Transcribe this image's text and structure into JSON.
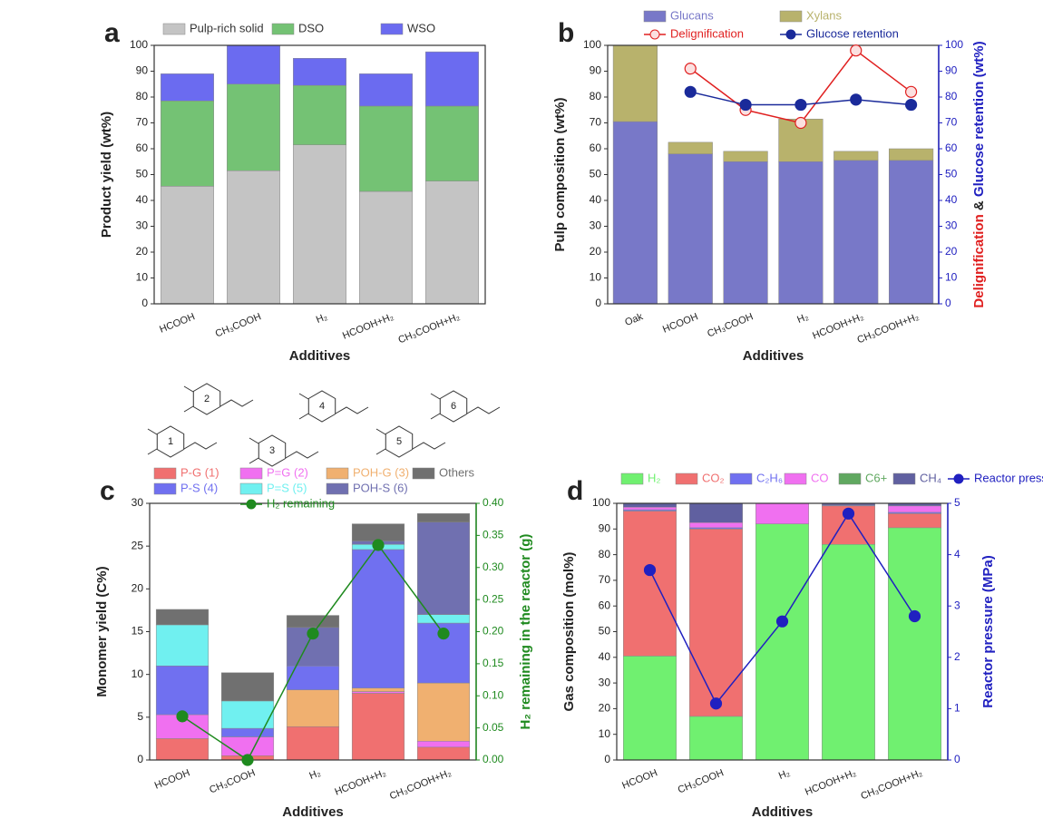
{
  "chart_data": [
    {
      "type": "bar",
      "stacked": true,
      "panel": "a",
      "categories": [
        "HCOOH",
        "CH₃COOH",
        "H₂",
        "HCOOH+H₂",
        "CH₃COOH+H₂"
      ],
      "xlabel": "Additives",
      "ylabel": "Product yield (wt%)",
      "ylim": [
        0,
        100
      ],
      "yticks": [
        0,
        10,
        20,
        30,
        40,
        50,
        60,
        70,
        80,
        90,
        100
      ],
      "series": [
        {
          "name": "Pulp-rich solid",
          "color": "#c4c4c4",
          "values": [
            45.5,
            51.5,
            61.5,
            43.5,
            47.5
          ]
        },
        {
          "name": "DSO",
          "color": "#74c274",
          "values": [
            33,
            33.5,
            23,
            33,
            29
          ]
        },
        {
          "name": "WSO",
          "color": "#6b6bf0",
          "values": [
            10.5,
            15,
            10.5,
            12.5,
            21
          ]
        }
      ]
    },
    {
      "type": "bar",
      "stacked": true,
      "panel": "b",
      "categories": [
        "Oak",
        "HCOOH",
        "CH₃COOH",
        "H₂",
        "HCOOH+H₂",
        "CH₃COOH+H₂"
      ],
      "xlabel": "Additives",
      "ylabel": "Pulp composition (wt%)",
      "y2label": [
        "Delignification",
        " & ",
        "Glucose retention (wt%)"
      ],
      "y2label_colors": [
        "#e02020",
        "#222222",
        "#2020c0"
      ],
      "ylim": [
        0,
        100
      ],
      "yticks": [
        0,
        10,
        20,
        30,
        40,
        50,
        60,
        70,
        80,
        90,
        100
      ],
      "y2lim": [
        0,
        100
      ],
      "y2ticks": [
        0,
        10,
        20,
        30,
        40,
        50,
        60,
        70,
        80,
        90,
        100
      ],
      "y2_color": "#2020c0",
      "series": [
        {
          "name": "Glucans",
          "color": "#7878c8",
          "values": [
            70.5,
            58,
            55,
            55,
            55.5,
            55.5
          ]
        },
        {
          "name": "Xylans",
          "color": "#b8b26c",
          "values": [
            29.5,
            4.5,
            4,
            16.5,
            3.5,
            4.5
          ]
        },
        {
          "name": "Delignification",
          "color": "#e02020",
          "axis": "y2",
          "values": [
            null,
            91,
            75,
            70,
            98,
            82
          ]
        },
        {
          "name": "Glucose retention",
          "color": "#1a2a9a",
          "axis": "y2",
          "values": [
            null,
            82,
            77,
            77,
            79,
            77
          ]
        }
      ]
    },
    {
      "type": "bar",
      "stacked": true,
      "panel": "c",
      "categories": [
        "HCOOH",
        "CH₃COOH",
        "H₂",
        "HCOOH+H₂",
        "CH₃COOH+H₂"
      ],
      "xlabel": "Additives",
      "ylabel": "Monomer yield (C%)",
      "y2label": "H₂ remaining in the reactor (g)",
      "ylim": [
        0,
        30
      ],
      "yticks": [
        0,
        5,
        10,
        15,
        20,
        25,
        30
      ],
      "y2lim": [
        0,
        0.4
      ],
      "y2ticks": [
        {
          "value": 0,
          "label": "0.00"
        },
        0.05,
        {
          "value": 0.1,
          "label": "0.10"
        },
        0.15,
        {
          "value": 0.2,
          "label": "0.20"
        },
        0.25,
        {
          "value": 0.3,
          "label": "0.30"
        },
        0.35,
        {
          "value": 0.4,
          "label": "0.40"
        }
      ],
      "y2_color": "#1f8a1f",
      "series": [
        {
          "name": "P-G (1)",
          "color": "#f07070",
          "values": [
            2.5,
            0.5,
            3.9,
            7.8,
            1.5
          ]
        },
        {
          "name": "P=G (2)",
          "color": "#f070f0",
          "values": [
            2.8,
            2.2,
            0,
            0.2,
            0.7
          ]
        },
        {
          "name": "POH-G (3)",
          "color": "#f0b070",
          "values": [
            0,
            0,
            4.3,
            0.4,
            6.8
          ]
        },
        {
          "name": "P-S (4)",
          "color": "#7070f0",
          "values": [
            5.7,
            1,
            2.8,
            16.2,
            7
          ]
        },
        {
          "name": "P=S (5)",
          "color": "#70f0f0",
          "values": [
            4.8,
            3.2,
            0,
            0.6,
            1
          ]
        },
        {
          "name": "POH-S (6)",
          "color": "#7070b0",
          "values": [
            0,
            0,
            4.5,
            0.4,
            10.8
          ]
        },
        {
          "name": "Others",
          "color": "#707070",
          "values": [
            1.8,
            3.3,
            1.4,
            2,
            1
          ]
        },
        {
          "name": "H₂ remaining",
          "color": "#1f8a1f",
          "axis": "y2",
          "values": [
            0.068,
            0.0,
            0.197,
            0.335,
            0.197
          ]
        }
      ]
    },
    {
      "type": "bar",
      "stacked": true,
      "panel": "d",
      "categories": [
        "HCOOH",
        "CH₃COOH",
        "H₂",
        "HCOOH+H₂",
        "CH₃COOH+H₂"
      ],
      "xlabel": "Additives",
      "ylabel": "Gas composition (mol%)",
      "y2label": "Reactor pressure (MPa)",
      "ylim": [
        0,
        100
      ],
      "yticks": [
        0,
        10,
        20,
        30,
        40,
        50,
        60,
        70,
        80,
        90,
        100
      ],
      "y2lim": [
        0,
        5
      ],
      "y2ticks": [
        0,
        1,
        2,
        3,
        4,
        5
      ],
      "y2_color": "#2020c0",
      "series": [
        {
          "name": "H₂",
          "color": "#70f070",
          "values": [
            40.5,
            17,
            92,
            84,
            90.5
          ]
        },
        {
          "name": "CO₂",
          "color": "#f07070",
          "values": [
            56.5,
            73,
            0,
            15,
            5.5
          ]
        },
        {
          "name": "C₂H₆",
          "color": "#7070f0",
          "values": [
            0.5,
            0.5,
            0,
            0.3,
            0.5
          ]
        },
        {
          "name": "CO",
          "color": "#f070f0",
          "values": [
            1,
            2,
            8,
            0,
            2.5
          ]
        },
        {
          "name": "C6+",
          "color": "#60a860",
          "values": [
            0,
            0,
            0,
            0,
            0
          ]
        },
        {
          "name": "CH₄",
          "color": "#6060a0",
          "values": [
            1.5,
            7.5,
            0,
            0.7,
            1
          ]
        },
        {
          "name": "Reactor pressure",
          "color": "#2020c0",
          "axis": "y2",
          "values": [
            3.7,
            1.1,
            2.7,
            4.8,
            2.8
          ]
        }
      ]
    }
  ],
  "structures": [
    "1",
    "2",
    "3",
    "4",
    "5",
    "6"
  ]
}
